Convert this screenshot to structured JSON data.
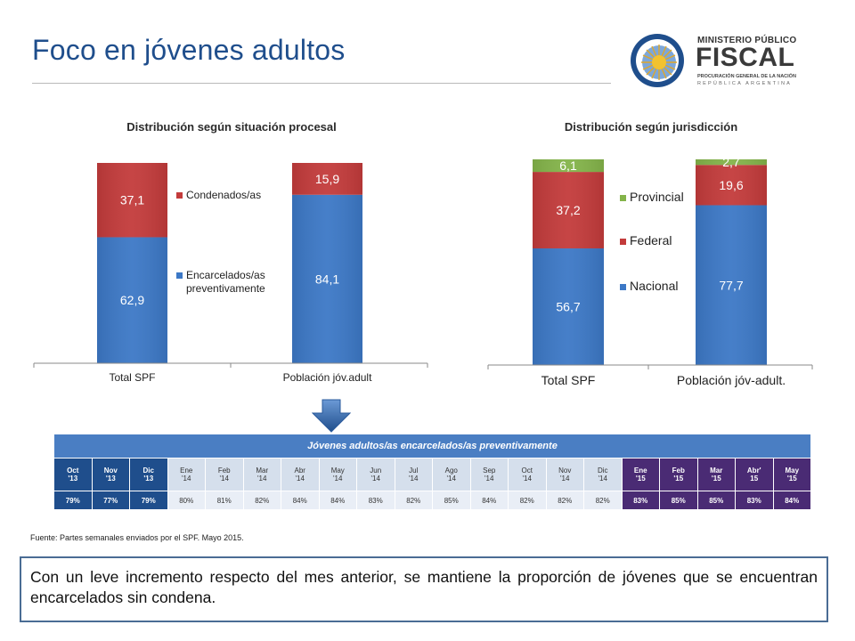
{
  "page": {
    "title": "Foco en jóvenes adultos",
    "logo": {
      "line1": "MINISTERIO PÚBLICO",
      "line2": "FISCAL",
      "line3": "PROCURACIÓN GENERAL DE LA NACIÓN",
      "line4": "REPÚBLICA ARGENTINA"
    }
  },
  "colors": {
    "title": "#1f4e8c",
    "blue_series": "#3c78c6",
    "red_series": "#c33b3b",
    "green_series": "#84b44a",
    "table_header": "#4a7ec3",
    "table_dark_blue": "#1f4e8c",
    "table_purple": "#4a2b74",
    "table_light": "#d5dfec"
  },
  "chart_data": [
    {
      "type": "bar",
      "stacked": true,
      "title": "Distribución según situación procesal",
      "categories": [
        "Total SPF",
        "Población jóv.adult"
      ],
      "series": [
        {
          "name": "Encarcelados/as preventivamente",
          "name_lines": [
            "Encarcelados/as",
            "preventivamente"
          ],
          "values": [
            62.9,
            84.1
          ],
          "labels": [
            "62,9",
            "84,1"
          ],
          "color": "#3c78c6"
        },
        {
          "name": "Condenados/as",
          "name_lines": [
            "Condenados/as"
          ],
          "values": [
            37.1,
            15.9
          ],
          "labels": [
            "37,1",
            "15,9"
          ],
          "color": "#c33b3b"
        }
      ],
      "ylim": [
        0,
        100
      ],
      "legend_position": "right-inside",
      "grid": false
    },
    {
      "type": "bar",
      "stacked": true,
      "title": "Distribución según jurisdicción",
      "categories": [
        "Total SPF",
        "Población jóv-adult."
      ],
      "series": [
        {
          "name": "Nacional",
          "name_lines": [
            "Nacional"
          ],
          "values": [
            56.7,
            77.7
          ],
          "labels": [
            "56,7",
            "77,7"
          ],
          "color": "#3c78c6"
        },
        {
          "name": "Federal",
          "name_lines": [
            "Federal"
          ],
          "values": [
            37.2,
            19.6
          ],
          "labels": [
            "37,2",
            "19,6"
          ],
          "color": "#c33b3b"
        },
        {
          "name": "Provincial",
          "name_lines": [
            "Provincial"
          ],
          "values": [
            6.1,
            2.7
          ],
          "labels": [
            "6,1",
            "2,7"
          ],
          "color": "#84b44a"
        }
      ],
      "ylim": [
        0,
        100
      ],
      "legend_position": "right-inside",
      "grid": false
    },
    {
      "type": "table",
      "title": "Jóvenes adultos/as encarcelados/as preventivamente",
      "columns": [
        {
          "month": "Oct",
          "year": "'13",
          "value": "79%",
          "group": "blue"
        },
        {
          "month": "Nov",
          "year": "'13",
          "value": "77%",
          "group": "blue"
        },
        {
          "month": "Dic",
          "year": "'13",
          "value": "79%",
          "group": "blue"
        },
        {
          "month": "Ene",
          "year": "'14",
          "value": "80%",
          "group": "light"
        },
        {
          "month": "Feb",
          "year": "'14",
          "value": "81%",
          "group": "light"
        },
        {
          "month": "Mar",
          "year": "'14",
          "value": "82%",
          "group": "light"
        },
        {
          "month": "Abr",
          "year": "'14",
          "value": "84%",
          "group": "light"
        },
        {
          "month": "May",
          "year": "'14",
          "value": "84%",
          "group": "light"
        },
        {
          "month": "Jun",
          "year": "'14",
          "value": "83%",
          "group": "light"
        },
        {
          "month": "Jul",
          "year": "'14",
          "value": "82%",
          "group": "light"
        },
        {
          "month": "Ago",
          "year": "'14",
          "value": "85%",
          "group": "light"
        },
        {
          "month": "Sep",
          "year": "'14",
          "value": "84%",
          "group": "light"
        },
        {
          "month": "Oct",
          "year": "'14",
          "value": "82%",
          "group": "light"
        },
        {
          "month": "Nov",
          "year": "'14",
          "value": "82%",
          "group": "light"
        },
        {
          "month": "Dic",
          "year": "'14",
          "value": "82%",
          "group": "light"
        },
        {
          "month": "Ene",
          "year": "'15",
          "value": "83%",
          "group": "purple"
        },
        {
          "month": "Feb",
          "year": "'15",
          "value": "85%",
          "group": "purple"
        },
        {
          "month": "Mar",
          "year": "'15",
          "value": "85%",
          "group": "purple"
        },
        {
          "month": "Abr'",
          "year": "15",
          "value": "83%",
          "group": "purple"
        },
        {
          "month": "May",
          "year": "'15",
          "value": "84%",
          "group": "purple"
        }
      ]
    }
  ],
  "source": "Fuente: Partes semanales enviados por el SPF. Mayo 2015.",
  "note": "Con un leve incremento respecto del mes anterior, se mantiene la proporción de jóvenes que se encuentran encarcelados sin condena."
}
